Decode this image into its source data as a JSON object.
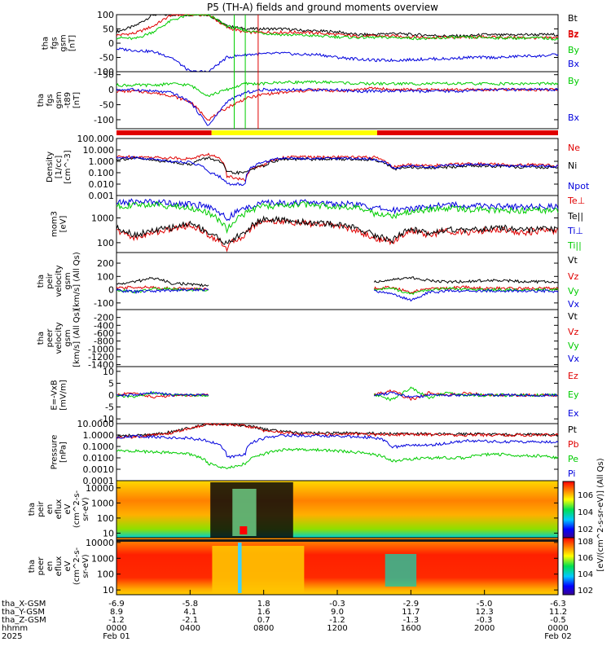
{
  "title": "P5 (TH-A) fields and ground moments overview",
  "colors": {
    "black": "#000000",
    "red": "#e00000",
    "green": "#00cc00",
    "blue": "#0000dd",
    "yellow": "#ffff00",
    "mode_red": "#e00000"
  },
  "chart_data": [
    {
      "type": "line",
      "id": "fgs",
      "ylabel": [
        "tha",
        "fgs",
        "gsm",
        "[nT]"
      ],
      "ylim": [
        -100,
        100
      ],
      "yticks": [
        100,
        50,
        0,
        -50,
        -100
      ],
      "series": [
        {
          "name": "Bt",
          "color": "black",
          "values": [
            40,
            60,
            100,
            100,
            100,
            100,
            60,
            50,
            50,
            50,
            45,
            42,
            40,
            30,
            30,
            35,
            30,
            28,
            25,
            25,
            30,
            28,
            30,
            30,
            30
          ]
        },
        {
          "name": "Bz",
          "color": "red",
          "values": [
            28,
            35,
            60,
            100,
            100,
            100,
            55,
            38,
            38,
            38,
            38,
            35,
            30,
            25,
            25,
            25,
            22,
            20,
            20,
            20,
            22,
            20,
            20,
            18,
            20
          ]
        },
        {
          "name": "By",
          "color": "green",
          "values": [
            20,
            15,
            40,
            80,
            100,
            100,
            60,
            45,
            35,
            30,
            28,
            25,
            22,
            20,
            20,
            20,
            18,
            15,
            20,
            20,
            20,
            18,
            18,
            18,
            15
          ]
        },
        {
          "name": "Bx",
          "color": "blue",
          "values": [
            -20,
            -25,
            -30,
            -50,
            -100,
            -100,
            -50,
            -40,
            -38,
            -35,
            -40,
            -40,
            -50,
            -55,
            -60,
            -60,
            -58,
            -55,
            -55,
            -50,
            -50,
            -50,
            -45,
            -45,
            -40
          ]
        }
      ]
    },
    {
      "type": "line",
      "id": "fgs-t89",
      "ylabel": [
        "tha",
        "fgs",
        "gsm",
        "-t89",
        "[nT]"
      ],
      "ylim": [
        -130,
        60
      ],
      "yticks": [
        50,
        0,
        -50,
        -100
      ],
      "series": [
        {
          "name": "Bz",
          "color": "red",
          "values": [
            -5,
            -5,
            -10,
            -20,
            -40,
            -100,
            -60,
            -30,
            -15,
            -10,
            -5,
            0,
            -5,
            0,
            5,
            0,
            0,
            0,
            0,
            0,
            0,
            0,
            0,
            0,
            0
          ]
        },
        {
          "name": "By",
          "color": "green",
          "values": [
            15,
            15,
            15,
            20,
            15,
            -20,
            0,
            20,
            20,
            25,
            25,
            25,
            25,
            20,
            20,
            20,
            20,
            20,
            20,
            20,
            20,
            20,
            20,
            20,
            20
          ]
        },
        {
          "name": "Bx",
          "color": "blue",
          "values": [
            0,
            0,
            -5,
            -10,
            -40,
            -120,
            -40,
            -10,
            0,
            0,
            0,
            0,
            0,
            -5,
            -5,
            -5,
            -5,
            -5,
            -5,
            -5,
            0,
            0,
            0,
            0,
            0
          ]
        }
      ]
    },
    {
      "type": "line",
      "id": "density",
      "ylabel": [
        "Density",
        "[1/cc]",
        "[cm^-3]"
      ],
      "yscale": "log",
      "ylim": [
        0.001,
        100
      ],
      "yticks": [
        "100.000",
        "10.000",
        "1.000",
        "0.100",
        "0.010",
        "0.001"
      ],
      "series": [
        {
          "name": "Ne",
          "color": "red",
          "values": [
            2.5,
            2.5,
            2.2,
            2,
            1.6,
            4,
            0.05,
            0.02,
            0.5,
            2,
            2.5,
            2.2,
            2.4,
            2.2,
            2.2,
            0.3,
            0.5,
            0.4,
            0.5,
            0.6,
            0.6,
            0.5,
            0.5,
            0.5,
            0.4
          ]
        },
        {
          "name": "Ni",
          "color": "black",
          "values": [
            1.5,
            1.8,
            1.2,
            0.9,
            0.5,
            2,
            0.1,
            0.1,
            0.4,
            1.5,
            1.5,
            1.5,
            1.6,
            1.5,
            1.4,
            0.2,
            0.3,
            0.25,
            0.3,
            0.4,
            0.4,
            0.35,
            0.3,
            0.3,
            0.3
          ]
        },
        {
          "name": "Npot",
          "color": "blue",
          "values": [
            2,
            2,
            1.5,
            1,
            0.8,
            0.1,
            0.01,
            0.01,
            0.8,
            2,
            1.8,
            1.8,
            1.8,
            1.8,
            1.6,
            0.25,
            0.4,
            0.3,
            0.4,
            0.5,
            0.5,
            0.4,
            0.4,
            0.4,
            0.35
          ]
        }
      ]
    },
    {
      "type": "line",
      "id": "temperature",
      "ylabel": [
        "mom3",
        "[eV]"
      ],
      "yscale": "log",
      "ylim": [
        40,
        8000
      ],
      "yticks": [
        1000,
        100
      ],
      "series": [
        {
          "name": "Te⊥",
          "color": "red",
          "values": [
            300,
            150,
            250,
            350,
            500,
            200,
            60,
            200,
            800,
            700,
            600,
            550,
            500,
            300,
            150,
            100,
            300,
            200,
            300,
            250,
            300,
            350,
            250,
            300,
            300
          ]
        },
        {
          "name": "Te||",
          "color": "black",
          "values": [
            400,
            200,
            300,
            400,
            600,
            250,
            80,
            250,
            900,
            800,
            700,
            600,
            550,
            400,
            200,
            120,
            350,
            250,
            350,
            300,
            350,
            400,
            300,
            350,
            350
          ]
        },
        {
          "name": "Ti⊥",
          "color": "blue",
          "values": [
            4000,
            4500,
            4500,
            4000,
            3500,
            3000,
            800,
            2500,
            4000,
            4000,
            4200,
            4000,
            3800,
            3500,
            2500,
            2000,
            2500,
            3000,
            3500,
            3200,
            3000,
            3000,
            2800,
            2800,
            2800
          ]
        },
        {
          "name": "Ti||",
          "color": "green",
          "values": [
            3000,
            3200,
            3500,
            3000,
            2500,
            1500,
            300,
            1500,
            3000,
            3000,
            3500,
            3200,
            3000,
            2500,
            1500,
            1200,
            1800,
            2200,
            2500,
            2200,
            2200,
            2000,
            2000,
            2000,
            2000
          ]
        }
      ]
    },
    {
      "type": "line",
      "id": "peir-velocity",
      "ylabel": [
        "tha",
        "peir",
        "velocity",
        "gsm",
        "[km/s] (All Qs)"
      ],
      "ylim": [
        -150,
        280
      ],
      "yticks": [
        200,
        100,
        0,
        -100
      ],
      "segments": [
        [
          0,
          6
        ],
        [
          14,
          24
        ]
      ],
      "series": [
        {
          "name": "Vt",
          "color": "black",
          "values": [
            40,
            60,
            90,
            50,
            40,
            30,
            null,
            null,
            null,
            null,
            null,
            null,
            null,
            null,
            60,
            80,
            90,
            70,
            60,
            60,
            70,
            70,
            60,
            60,
            60
          ]
        },
        {
          "name": "Vz",
          "color": "red",
          "values": [
            10,
            20,
            15,
            10,
            5,
            5,
            null,
            null,
            null,
            null,
            null,
            null,
            null,
            null,
            10,
            20,
            -20,
            10,
            10,
            20,
            10,
            10,
            10,
            10,
            10
          ]
        },
        {
          "name": "Vy",
          "color": "green",
          "values": [
            0,
            -20,
            10,
            5,
            0,
            0,
            null,
            null,
            null,
            null,
            null,
            null,
            null,
            null,
            0,
            10,
            -30,
            0,
            10,
            0,
            0,
            0,
            0,
            0,
            0
          ]
        },
        {
          "name": "Vx",
          "color": "blue",
          "values": [
            -5,
            -15,
            -10,
            -5,
            0,
            0,
            null,
            null,
            null,
            null,
            null,
            null,
            null,
            null,
            -10,
            -30,
            -80,
            -20,
            -10,
            -10,
            -10,
            -10,
            -10,
            -10,
            -10
          ]
        }
      ]
    },
    {
      "type": "line",
      "id": "peer-velocity",
      "ylabel": [
        "tha",
        "peer",
        "velocity",
        "gsm",
        "[km/s] (All Qs)"
      ],
      "ylim": [
        -1450,
        0
      ],
      "yticks": [
        -200,
        -400,
        -600,
        -800,
        -1000,
        -1200,
        -1400
      ],
      "legend": [
        "Vt",
        "Vz",
        "Vy",
        "Vx"
      ],
      "series": []
    },
    {
      "type": "line",
      "id": "e-field",
      "ylabel": [
        "E=-VxB",
        "[mV/m]"
      ],
      "ylim": [
        -12,
        12
      ],
      "yticks": [
        10,
        5,
        0,
        -5,
        -10
      ],
      "segments": [
        [
          0,
          6
        ],
        [
          14,
          24
        ]
      ],
      "series": [
        {
          "name": "Ez",
          "color": "red",
          "values": [
            0,
            1,
            -1,
            0,
            0,
            0,
            null,
            null,
            null,
            null,
            null,
            null,
            null,
            null,
            0,
            2,
            -2,
            1,
            0,
            1,
            0,
            0,
            0,
            0,
            0
          ]
        },
        {
          "name": "Ey",
          "color": "green",
          "values": [
            0,
            -1,
            1,
            0,
            0,
            0,
            null,
            null,
            null,
            null,
            null,
            null,
            null,
            null,
            0,
            -2,
            3,
            -1,
            1,
            0,
            0,
            0,
            0,
            0,
            0
          ]
        },
        {
          "name": "Ex",
          "color": "blue",
          "values": [
            0,
            0,
            1,
            0,
            0,
            0,
            null,
            null,
            null,
            null,
            null,
            null,
            null,
            null,
            0,
            1,
            -1,
            0,
            0,
            0,
            0,
            0,
            0,
            0,
            0
          ]
        }
      ]
    },
    {
      "type": "line",
      "id": "pressure",
      "ylabel": [
        "Pressure",
        "[nPa]"
      ],
      "yscale": "log",
      "ylim": [
        0.0001,
        10
      ],
      "yticks": [
        "10.0000",
        "1.0000",
        "0.1000",
        "0.0100",
        "0.0010",
        "0.0001"
      ],
      "series": [
        {
          "name": "Pt",
          "color": "black",
          "values": [
            0.8,
            0.9,
            1.1,
            1.8,
            4,
            10,
            9,
            7,
            3,
            2,
            1.6,
            1.5,
            1.5,
            1.5,
            1.4,
            1.3,
            1.3,
            1.3,
            1.2,
            1.2,
            1.2,
            1.1,
            1.1,
            1.1,
            1
          ]
        },
        {
          "name": "Pb",
          "color": "red",
          "values": [
            0.6,
            0.7,
            1,
            1.5,
            3.5,
            9,
            8,
            6,
            2.5,
            1.6,
            1.3,
            1.2,
            1.2,
            1.2,
            1.1,
            1.1,
            1.1,
            1.1,
            1,
            1,
            1,
            1,
            1,
            1,
            1
          ]
        },
        {
          "name": "Pe",
          "color": "green",
          "values": [
            0.04,
            0.04,
            0.03,
            0.03,
            0.02,
            0.003,
            0.001,
            0.003,
            0.02,
            0.05,
            0.05,
            0.05,
            0.04,
            0.03,
            0.02,
            0.005,
            0.008,
            0.01,
            0.01,
            0.01,
            0.02,
            0.02,
            0.015,
            0.015,
            0.01
          ]
        },
        {
          "name": "Pi",
          "color": "blue",
          "values": [
            0.6,
            0.8,
            0.7,
            0.6,
            0.5,
            0.3,
            0.01,
            0.02,
            0.5,
            0.9,
            0.9,
            0.9,
            0.8,
            0.7,
            0.6,
            0.08,
            0.15,
            0.12,
            0.2,
            0.3,
            0.3,
            0.25,
            0.25,
            0.25,
            0.25
          ]
        }
      ]
    },
    {
      "type": "heatmap",
      "id": "peir-en",
      "ylabel": [
        "tha",
        "peir",
        "en",
        "eflux",
        "eV",
        "(cm^2-s-",
        "sr-eV)"
      ],
      "yscale": "log",
      "ylim": [
        5,
        30000
      ],
      "yticks": [
        "10000",
        "1000",
        "100",
        "10"
      ]
    },
    {
      "type": "heatmap",
      "id": "peer-en",
      "ylabel": [
        "tha",
        "peer",
        "en",
        "eflux",
        "eV",
        "(cm^2-s-",
        "sr-eV)"
      ],
      "yscale": "log",
      "ylim": [
        5,
        20000
      ],
      "yticks": [
        "10000",
        "1000",
        "100",
        "10"
      ]
    }
  ],
  "colorbar_top": {
    "label": "[eV/(cm^2-s-sr-eV)] (All Qs)",
    "ticks": [
      "10^6",
      "10^4",
      "10^2"
    ]
  },
  "colorbar_bottom": {
    "ticks": [
      "10^8",
      "10^6",
      "10^4",
      "10^2"
    ]
  },
  "mode_bar": [
    {
      "from": "0000",
      "to": "0510",
      "color": "red"
    },
    {
      "from": "0510",
      "to": "1410",
      "color": "yellow"
    },
    {
      "from": "1410",
      "to": "2400",
      "color": "red"
    }
  ],
  "vertical_markers": [
    {
      "time": "0624",
      "color": "green"
    },
    {
      "time": "0700",
      "color": "green"
    },
    {
      "time": "0742",
      "color": "red"
    }
  ],
  "xaxis": {
    "row_labels": [
      "tha_X-GSM",
      "tha_Y-GSM",
      "tha_Z-GSM",
      "hhmm",
      "2025"
    ],
    "tick_hours": [
      0,
      4,
      8,
      12,
      16,
      20,
      24
    ],
    "x_gsm": [
      "-6.9",
      "-5.8",
      "1.8",
      "-0.3",
      "-2.9",
      "-5.0",
      "-6.3"
    ],
    "y_gsm": [
      "8.9",
      "4.1",
      "1.6",
      "9.0",
      "11.7",
      "12.3",
      "11.2"
    ],
    "z_gsm": [
      "-1.2",
      "-2.1",
      "0.7",
      "-1.2",
      "-1.3",
      "-0.3",
      "-0.5"
    ],
    "hhmm": [
      "0000",
      "0400",
      "0800",
      "1200",
      "1600",
      "2000",
      "0000"
    ],
    "date_start": "Feb 01",
    "date_end": "Feb 02"
  }
}
